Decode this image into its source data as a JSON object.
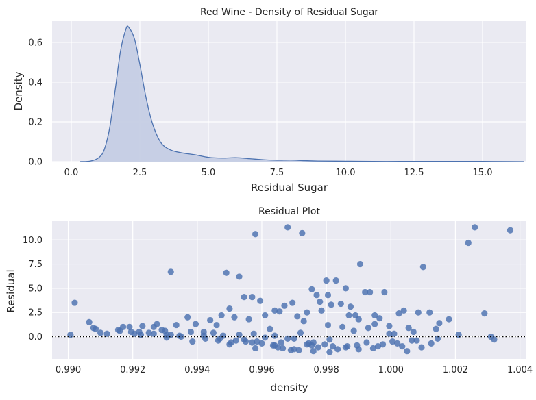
{
  "chart_data": [
    {
      "type": "area",
      "title": "Red Wine - Density of Residual Sugar",
      "xlabel": "Residual Sugar",
      "ylabel": "Density",
      "xlim": [
        -0.7,
        16.6
      ],
      "ylim": [
        0,
        0.71
      ],
      "xticks": [
        0,
        2.5,
        5,
        7.5,
        10,
        12.5,
        15
      ],
      "xtick_labels": [
        "0.0",
        "2.5",
        "5.0",
        "7.5",
        "10.0",
        "12.5",
        "15.0"
      ],
      "yticks": [
        0,
        0.2,
        0.4,
        0.6
      ],
      "ytick_labels": [
        "0.0",
        "0.2",
        "0.4",
        "0.6"
      ],
      "grid": true,
      "series": [
        {
          "x": [
            0.3,
            0.7,
            1.0,
            1.2,
            1.4,
            1.6,
            1.8,
            2.0,
            2.1,
            2.3,
            2.5,
            2.7,
            2.9,
            3.1,
            3.3,
            3.6,
            4.0,
            4.5,
            5.0,
            5.5,
            6.0,
            6.5,
            7.0,
            7.5,
            8.0,
            8.5,
            9.0,
            10.0,
            11.0,
            12.0,
            13.0,
            14.0,
            15.0,
            16.0,
            16.5
          ],
          "y": [
            0.0,
            0.003,
            0.02,
            0.06,
            0.17,
            0.36,
            0.56,
            0.67,
            0.675,
            0.62,
            0.49,
            0.34,
            0.22,
            0.14,
            0.09,
            0.06,
            0.045,
            0.035,
            0.022,
            0.018,
            0.02,
            0.015,
            0.01,
            0.007,
            0.008,
            0.005,
            0.003,
            0.002,
            0.001,
            0.001,
            0.001,
            0.001,
            0.001,
            0.0005,
            0.0
          ]
        }
      ],
      "colors": {
        "line": "#4c72b0",
        "fill": "#c5cde4"
      }
    },
    {
      "type": "scatter",
      "title": "Residual Plot",
      "xlabel": "density",
      "ylabel": "Residual",
      "xlim": [
        0.9895,
        1.0042
      ],
      "ylim": [
        -2.3,
        12.0
      ],
      "xticks": [
        0.99,
        0.992,
        0.994,
        0.996,
        0.998,
        1.0,
        1.002,
        1.004
      ],
      "xtick_labels": [
        "0.990",
        "0.992",
        "0.994",
        "0.996",
        "0.998",
        "1.000",
        "1.002",
        "1.004"
      ],
      "yticks": [
        0.0,
        2.5,
        5.0,
        7.5,
        10.0
      ],
      "ytick_labels": [
        "0.0",
        "2.5",
        "5.0",
        "7.5",
        "10.0"
      ],
      "reference_line": {
        "y": 0,
        "style": "dotted",
        "color": "#000000"
      },
      "grid": true,
      "points": {
        "x": [
          0.99007,
          0.9902,
          0.99065,
          0.99078,
          0.99085,
          0.9912,
          0.99155,
          0.9917,
          0.9919,
          0.99205,
          0.9923,
          0.9925,
          0.99265,
          0.99275,
          0.9929,
          0.99305,
          0.99318,
          0.99335,
          0.9935,
          0.9937,
          0.99395,
          0.9942,
          0.9944,
          0.9946,
          0.99475,
          0.9949,
          0.995,
          0.99515,
          0.9953,
          0.99545,
          0.9956,
          0.9957,
          0.9958,
          0.99595,
          0.9961,
          0.99625,
          0.9964,
          0.99655,
          0.9967,
          0.9968,
          0.99695,
          0.9971,
          0.99725,
          0.9974,
          0.99755,
          0.9977,
          0.99785,
          0.998,
          0.99815,
          0.9983,
          0.99845,
          0.9986,
          0.99875,
          0.9989,
          0.99905,
          0.9992,
          0.99935,
          0.9995,
          0.99965,
          0.9998,
          0.99995,
          1.0001,
          1.00025,
          1.0004,
          1.00055,
          1.0007,
          1.00085,
          1.001,
          1.0012,
          1.0014,
          1.0015,
          1.0018,
          1.0021,
          1.0024,
          1.0026,
          1.0029,
          1.0031,
          1.0032,
          1.0037,
          0.99318,
          0.9948,
          0.9952,
          0.9957,
          0.99575,
          0.9964,
          0.9968,
          0.9972,
          0.9993,
          0.99755,
          0.9973,
          0.99805,
          0.9985,
          0.99885,
          0.99805,
          0.9978,
          0.9987,
          0.999,
          0.9995,
          0.99995,
          0.995,
          0.9965,
          0.997,
          0.9955,
          0.996,
          0.9976,
          0.9982,
          0.9964,
          0.9942,
          0.9947,
          0.9958,
          0.9966,
          0.9969,
          0.9974,
          0.9981,
          0.9986,
          0.999,
          0.9996,
          1.0002,
          1.0005,
          1.0008,
          0.9981,
          0.9976,
          0.997,
          0.9961,
          0.9953,
          0.9945,
          0.9938,
          0.993,
          0.9922,
          0.9916,
          0.991,
          0.99585,
          0.99635,
          0.99665,
          0.99715,
          0.99745,
          0.99775,
          0.99795,
          0.99835,
          0.99865,
          0.99895,
          0.99925,
          0.99945,
          0.99975,
          1.00005,
          1.00035,
          1.00065,
          1.00095,
          1.00125,
          1.00145,
          0.99545,
          0.99505,
          0.99465,
          0.99425,
          0.99385,
          0.99345,
          0.99305,
          0.99265,
          0.99225,
          0.99195
        ],
        "y": [
          0.2,
          3.5,
          1.5,
          0.9,
          0.8,
          0.3,
          0.7,
          1.0,
          1.0,
          0.3,
          1.1,
          0.4,
          1.0,
          1.3,
          0.7,
          0.2,
          6.7,
          1.2,
          0.0,
          2.0,
          1.3,
          0.5,
          1.7,
          1.2,
          2.2,
          6.6,
          2.9,
          2.0,
          6.2,
          4.1,
          1.8,
          4.1,
          10.6,
          3.7,
          2.2,
          0.8,
          2.7,
          2.6,
          3.2,
          11.3,
          3.5,
          2.1,
          10.7,
          2.5,
          4.9,
          4.3,
          2.7,
          5.8,
          3.3,
          5.8,
          3.4,
          5.0,
          3.1,
          2.2,
          7.5,
          4.6,
          4.6,
          2.2,
          1.9,
          4.6,
          1.1,
          0.3,
          2.4,
          2.7,
          0.9,
          0.5,
          2.5,
          7.2,
          2.5,
          0.8,
          1.4,
          1.8,
          0.2,
          9.7,
          11.3,
          2.4,
          0.0,
          -0.3,
          11.0,
          0.2,
          0.1,
          -0.4,
          -0.6,
          0.3,
          0.1,
          -0.2,
          0.4,
          0.9,
          -0.9,
          1.6,
          1.2,
          1.0,
          0.6,
          4.3,
          3.6,
          2.2,
          1.8,
          1.3,
          0.3,
          -0.8,
          -1.1,
          -1.3,
          -0.5,
          -0.7,
          -1.5,
          -1.0,
          -0.9,
          0.1,
          -0.2,
          -1.2,
          -0.6,
          -1.4,
          -0.8,
          -1.6,
          -1.1,
          -1.3,
          -1.0,
          -0.7,
          -1.5,
          -0.4,
          -0.3,
          -0.6,
          -0.2,
          -0.1,
          0.2,
          0.4,
          0.5,
          0.6,
          0.5,
          0.6,
          0.4,
          -0.5,
          -0.9,
          -1.2,
          -1.4,
          -0.7,
          -1.1,
          -0.8,
          -1.3,
          -1.0,
          -0.9,
          -0.6,
          -1.2,
          -0.8,
          -0.5,
          -1.0,
          -0.4,
          -1.1,
          -0.7,
          -0.2,
          -0.3,
          -0.6,
          -0.4,
          -0.2,
          -0.5,
          0.1,
          -0.1,
          0.3,
          0.2,
          0.5
        ]
      },
      "colors": {
        "point": "#4c72b0"
      }
    }
  ]
}
